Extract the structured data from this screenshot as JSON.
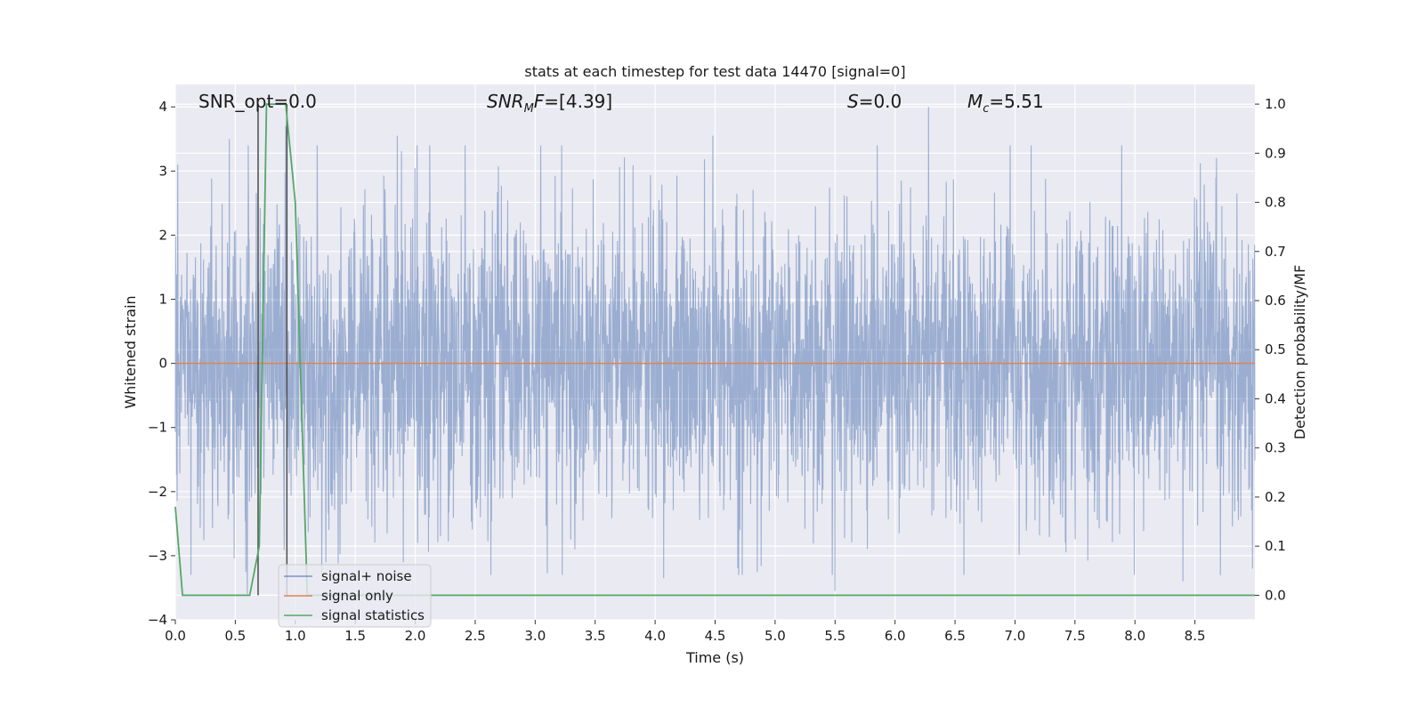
{
  "chart_data": {
    "type": "line",
    "title": "stats at each timestep for test data 14470 [signal=0]",
    "xlabel": "Time (s)",
    "ylabel": "Whitened strain",
    "y2label": "Detection probability/MF",
    "xlim": [
      0.0,
      9.0
    ],
    "ylim": [
      -4.0,
      4.35
    ],
    "y2lim": [
      -0.05,
      1.04
    ],
    "xticks": [
      "0.0",
      "0.5",
      "1.0",
      "1.5",
      "2.0",
      "2.5",
      "3.0",
      "3.5",
      "4.0",
      "4.5",
      "5.0",
      "5.5",
      "6.0",
      "6.5",
      "7.0",
      "7.5",
      "8.0",
      "8.5"
    ],
    "yticks": [
      "−4",
      "−3",
      "−2",
      "−1",
      "0",
      "1",
      "2",
      "3",
      "4"
    ],
    "y2ticks": [
      "0.0",
      "0.1",
      "0.2",
      "0.3",
      "0.4",
      "0.5",
      "0.6",
      "0.7",
      "0.8",
      "0.9",
      "1.0"
    ],
    "grid": true,
    "legend_position": "lower-left",
    "annotations": {
      "snr_opt": "SNR_opt=0.0",
      "snr_mf_base": "SNR",
      "snr_mf_sub": "M",
      "snr_mf_rest": "F=[4.39]",
      "s_sym": "S",
      "s_val": "=0.0",
      "mc_sym": "M",
      "mc_sub": "c",
      "mc_val": "=5.51"
    },
    "series": [
      {
        "name": "signal+ noise",
        "color": "#4c72b0",
        "description": "whitened noise samples, amplitude roughly within [-3.6, 4.0]",
        "peaks_high": [
          [
            0.02,
            3.1
          ],
          [
            0.45,
            3.5
          ],
          [
            0.92,
            3.7
          ],
          [
            1.85,
            3.55
          ],
          [
            4.48,
            3.55
          ],
          [
            6.28,
            4.0
          ],
          [
            8.68,
            3.2
          ]
        ],
        "peaks_low": [
          [
            0.6,
            -3.6
          ],
          [
            1.9,
            -3.1
          ],
          [
            4.07,
            -3.35
          ],
          [
            5.5,
            -3.55
          ],
          [
            8.4,
            -3.4
          ],
          [
            8.98,
            -3.2
          ]
        ]
      },
      {
        "name": "signal only",
        "color": "#dd8452",
        "x": [
          0.0,
          9.0
        ],
        "y": [
          0.0,
          0.0
        ]
      },
      {
        "name": "signal statistics",
        "color": "#55a868",
        "axis": "right",
        "x": [
          0.0,
          0.06,
          0.1,
          0.62,
          0.7,
          0.76,
          0.92,
          1.0,
          1.1,
          1.2,
          9.0
        ],
        "y": [
          0.18,
          0.0,
          0.0,
          0.0,
          0.1,
          1.0,
          1.0,
          0.8,
          0.0,
          0.0,
          0.0
        ]
      }
    ],
    "vlines": [
      0.69,
      0.93
    ],
    "vline_color": "#4d4d4d"
  }
}
